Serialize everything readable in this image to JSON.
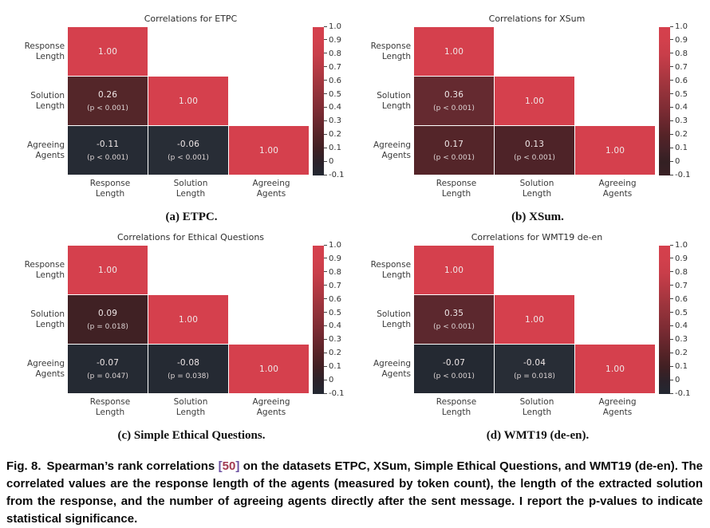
{
  "caption": {
    "fig_label": "Fig. 8.",
    "text_before_cite": "Spearman’s rank correlations",
    "cite_open": "[",
    "cite_num": "50",
    "cite_close": "]",
    "cite_bracket_color": "#6b4fa0",
    "cite_num_color": "#a23a52",
    "text_after_cite": "on the datasets ETPC, XSum, Simple Ethical Questions, and WMT19 (de-en). The correlated values are the response length of the agents (measured by token count), the length of the extracted solution from the response, and the number of agreeing agents directly after the sent message. I report the p-values to indicate statistical significance."
  },
  "colorbar": {
    "ticks": [
      "1.0",
      "0.9",
      "0.8",
      "0.7",
      "0.6",
      "0.5",
      "0.4",
      "0.3",
      "0.2",
      "0.1",
      "0",
      "-0.1"
    ],
    "stop_positions": [
      0,
      9,
      18,
      27,
      36,
      45,
      55,
      64,
      73,
      82,
      91,
      100
    ],
    "gradients": {
      "neg": [
        "#d5404d",
        "#d2404c",
        "#c93e4a",
        "#b83a45",
        "#a5363f",
        "#92323a",
        "#7e2c34",
        "#6a272e",
        "#552327",
        "#402023",
        "#2c222a",
        "#232832"
      ],
      "pos": [
        "#d5404d",
        "#d2404c",
        "#c93e4a",
        "#b83a45",
        "#a5363f",
        "#92323a",
        "#7e2c34",
        "#6a272e",
        "#552327",
        "#452228",
        "#332023",
        "#3a2125"
      ]
    }
  },
  "chart_data": [
    {
      "id": "a",
      "type": "heatmap",
      "title": "Correlations for ETPC",
      "subcaption": "(a) ETPC.",
      "categories": [
        "Response Length",
        "Solution Length",
        "Agreeing Agents"
      ],
      "values": [
        [
          1.0,
          null,
          null
        ],
        [
          0.26,
          1.0,
          null
        ],
        [
          -0.11,
          -0.06,
          1.0
        ]
      ],
      "p_values": [
        [
          null,
          null,
          null
        ],
        [
          "p < 0.001",
          null,
          null
        ],
        [
          "p < 0.001",
          "p < 0.001",
          null
        ]
      ],
      "cell_colors": [
        [
          "#d5404d",
          null,
          null
        ],
        [
          "#542629",
          "#d5404d",
          null
        ],
        [
          "#262b34",
          "#282d36",
          "#d5404d"
        ]
      ],
      "colorbar": {
        "min": -0.1,
        "max": 1.0,
        "gradient": "neg"
      }
    },
    {
      "id": "b",
      "type": "heatmap",
      "title": "Correlations for XSum",
      "subcaption": "(b) XSum.",
      "categories": [
        "Response Length",
        "Solution Length",
        "Agreeing Agents"
      ],
      "values": [
        [
          1.0,
          null,
          null
        ],
        [
          0.36,
          1.0,
          null
        ],
        [
          0.17,
          0.13,
          1.0
        ]
      ],
      "p_values": [
        [
          null,
          null,
          null
        ],
        [
          "p < 0.001",
          null,
          null
        ],
        [
          "p < 0.001",
          "p < 0.001",
          null
        ]
      ],
      "cell_colors": [
        [
          "#d5404d",
          null,
          null
        ],
        [
          "#652a30",
          "#d5404d",
          null
        ],
        [
          "#542529",
          "#4e2328",
          "#d5404d"
        ]
      ],
      "colorbar": {
        "min": -0.1,
        "max": 1.0,
        "gradient": "pos"
      }
    },
    {
      "id": "c",
      "type": "heatmap",
      "title": "Correlations for Ethical Questions",
      "subcaption": "(c) Simple Ethical Questions.",
      "categories": [
        "Response Length",
        "Solution Length",
        "Agreeing Agents"
      ],
      "values": [
        [
          1.0,
          null,
          null
        ],
        [
          0.09,
          1.0,
          null
        ],
        [
          -0.07,
          -0.08,
          1.0
        ]
      ],
      "p_values": [
        [
          null,
          null,
          null
        ],
        [
          "p = 0.018",
          null,
          null
        ],
        [
          "p = 0.047",
          "p = 0.038",
          null
        ]
      ],
      "cell_colors": [
        [
          "#d5404d",
          null,
          null
        ],
        [
          "#402124",
          "#d5404d",
          null
        ],
        [
          "#252a33",
          "#252a33",
          "#d5404d"
        ]
      ],
      "colorbar": {
        "min": -0.1,
        "max": 1.0,
        "gradient": "neg"
      }
    },
    {
      "id": "d",
      "type": "heatmap",
      "title": "Correlations for WMT19 de-en",
      "subcaption": "(d) WMT19 (de-en).",
      "categories": [
        "Response Length",
        "Solution Length",
        "Agreeing Agents"
      ],
      "values": [
        [
          1.0,
          null,
          null
        ],
        [
          0.35,
          1.0,
          null
        ],
        [
          -0.07,
          -0.04,
          1.0
        ]
      ],
      "p_values": [
        [
          null,
          null,
          null
        ],
        [
          "p < 0.001",
          null,
          null
        ],
        [
          "p < 0.001",
          "p = 0.018",
          null
        ]
      ],
      "cell_colors": [
        [
          "#d5404d",
          null,
          null
        ],
        [
          "#5c282e",
          "#d5404d",
          null
        ],
        [
          "#242932",
          "#282d36",
          "#d5404d"
        ]
      ],
      "colorbar": {
        "min": -0.1,
        "max": 1.0,
        "gradient": "neg"
      }
    }
  ]
}
